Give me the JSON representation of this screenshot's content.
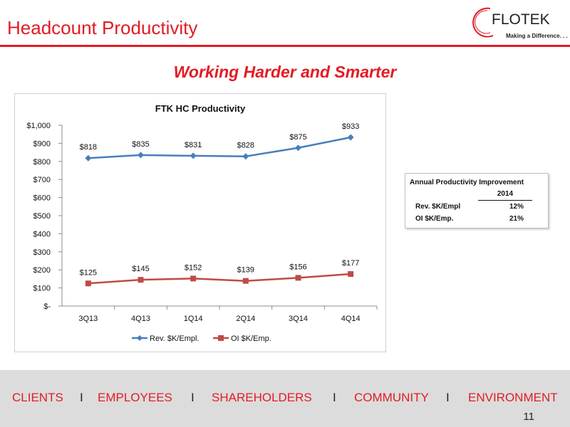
{
  "header": {
    "title": "Headcount Productivity",
    "logo_name": "FLOTEK",
    "logo_tagline": "Making a Difference. . ."
  },
  "subtitle": "Working Harder and Smarter",
  "chart_data": {
    "type": "line",
    "title": "FTK HC Productivity",
    "categories": [
      "3Q13",
      "4Q13",
      "1Q14",
      "2Q14",
      "3Q14",
      "4Q14"
    ],
    "ylim": [
      0,
      1000
    ],
    "yticks": [
      "$-",
      "$100",
      "$200",
      "$300",
      "$400",
      "$500",
      "$600",
      "$700",
      "$800",
      "$900",
      "$1,000"
    ],
    "grid": false,
    "legend_position": "bottom",
    "series": [
      {
        "name": "Rev. $K/Empl.",
        "color": "#4a7ebb",
        "marker": "diamond",
        "values": [
          818,
          835,
          831,
          828,
          875,
          933
        ],
        "labels": [
          "$818",
          "$835",
          "$831",
          "$828",
          "$875",
          "$933"
        ]
      },
      {
        "name": "OI $K/Emp.",
        "color": "#be4b48",
        "marker": "square",
        "values": [
          125,
          145,
          152,
          139,
          156,
          177
        ],
        "labels": [
          "$125",
          "$145",
          "$152",
          "$139",
          "$156",
          "$177"
        ]
      }
    ]
  },
  "productivity_table": {
    "heading": "Annual Productivity Improvement",
    "year": "2014",
    "rows": [
      {
        "label": "Rev. $K/Empl",
        "value": "12%"
      },
      {
        "label": "OI $K/Emp.",
        "value": "21%"
      }
    ]
  },
  "footer": {
    "items": [
      "CLIENTS",
      "EMPLOYEES",
      "SHAREHOLDERS",
      "COMMUNITY",
      "ENVIRONMENT"
    ],
    "separator": "I",
    "page_number": "11"
  }
}
